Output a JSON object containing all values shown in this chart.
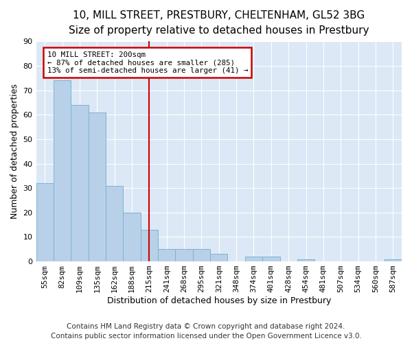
{
  "title": "10, MILL STREET, PRESTBURY, CHELTENHAM, GL52 3BG",
  "subtitle": "Size of property relative to detached houses in Prestbury",
  "xlabel": "Distribution of detached houses by size in Prestbury",
  "ylabel": "Number of detached properties",
  "categories": [
    "55sqm",
    "82sqm",
    "109sqm",
    "135sqm",
    "162sqm",
    "188sqm",
    "215sqm",
    "241sqm",
    "268sqm",
    "295sqm",
    "321sqm",
    "348sqm",
    "374sqm",
    "401sqm",
    "428sqm",
    "454sqm",
    "481sqm",
    "507sqm",
    "534sqm",
    "560sqm",
    "587sqm"
  ],
  "values": [
    32,
    74,
    64,
    61,
    31,
    20,
    13,
    5,
    5,
    5,
    3,
    0,
    2,
    2,
    0,
    1,
    0,
    0,
    0,
    0,
    1
  ],
  "bar_color": "#b8d0e8",
  "bar_edge_color": "#7ab4d4",
  "background_color": "#dce8f5",
  "grid_color": "#ffffff",
  "annotation_text": "10 MILL STREET: 200sqm\n← 87% of detached houses are smaller (285)\n13% of semi-detached houses are larger (41) →",
  "annotation_box_color": "#ffffff",
  "annotation_box_edge_color": "#cc0000",
  "property_line_color": "#cc0000",
  "property_line_x": 6.0,
  "ylim": [
    0,
    90
  ],
  "yticks": [
    0,
    10,
    20,
    30,
    40,
    50,
    60,
    70,
    80,
    90
  ],
  "footer_line1": "Contains HM Land Registry data © Crown copyright and database right 2024.",
  "footer_line2": "Contains public sector information licensed under the Open Government Licence v3.0.",
  "title_fontsize": 11,
  "subtitle_fontsize": 10,
  "xlabel_fontsize": 9,
  "ylabel_fontsize": 9,
  "tick_fontsize": 8,
  "footer_fontsize": 7.5
}
